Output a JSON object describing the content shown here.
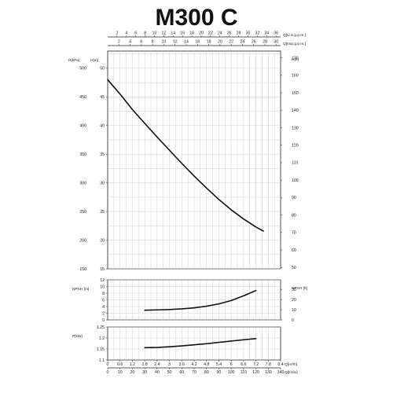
{
  "title": "M300 C",
  "chart_data": {
    "type": "line",
    "title": "M300 C",
    "top_axes": [
      {
        "label": "Q[U.S.g.p.m.]",
        "ticks": [
          "2",
          "4",
          "6",
          "8",
          "10",
          "12",
          "14",
          "16",
          "18",
          "20",
          "22",
          "24",
          "26",
          "28",
          "30",
          "32",
          "34",
          "36"
        ]
      },
      {
        "label": "Q[Imp.g.p.m.]",
        "ticks": [
          "2",
          "4",
          "6",
          "8",
          "10",
          "12",
          "14",
          "16",
          "18",
          "20",
          "22",
          "24",
          "26",
          "28",
          "30"
        ]
      }
    ],
    "bottom_axes": [
      {
        "label": "Q[m³/h]",
        "ticks": [
          "0",
          "0.6",
          "1.2",
          "1.8",
          "2.4",
          "3",
          "3.6",
          "4.2",
          "4.8",
          "5.4",
          "6",
          "6.6",
          "7.2",
          "7.8",
          "8.4"
        ]
      },
      {
        "label": "Q[l/min]",
        "ticks": [
          "0",
          "10",
          "20",
          "30",
          "40",
          "50",
          "60",
          "70",
          "80",
          "90",
          "100",
          "110",
          "120",
          "130",
          "140"
        ]
      }
    ],
    "xlim": [
      0,
      140
    ],
    "panels": [
      {
        "name": "head",
        "left_axes": [
          {
            "label": "H[kPa]",
            "ticks": [
              "150",
              "200",
              "250",
              "300",
              "350",
              "400",
              "450",
              "500"
            ]
          },
          {
            "label": "H[m]",
            "ticks": [
              "15",
              "20",
              "25",
              "30",
              "35",
              "40",
              "45",
              "50"
            ]
          }
        ],
        "right_axis": {
          "label": "H[ft]",
          "ticks": [
            "50",
            "60",
            "70",
            "80",
            "90",
            "100",
            "110",
            "120",
            "130",
            "140",
            "150",
            "160",
            "170"
          ]
        },
        "ylim": [
          15,
          53
        ],
        "series": [
          {
            "x": [
              0,
              10,
              20,
              30,
              40,
              50,
              60,
              70,
              80,
              90,
              100,
              110,
              120,
              126
            ],
            "y": [
              48,
              45.5,
              42.8,
              40.4,
              38,
              35.7,
              33.4,
              31.2,
              29.1,
              27.1,
              25.3,
              23.7,
              22.3,
              21.6
            ]
          }
        ]
      },
      {
        "name": "npsh",
        "left_axis": {
          "label": "NPSH [m]",
          "ticks": [
            "0",
            "2",
            "4",
            "6",
            "8",
            "10",
            "12"
          ]
        },
        "right_axis": {
          "label": "NPSH [ft]",
          "ticks": [
            "0",
            "10",
            "20",
            "30"
          ]
        },
        "ylim": [
          0,
          12
        ],
        "series": [
          {
            "x": [
              30,
              40,
              50,
              60,
              70,
              80,
              90,
              100,
              110,
              120
            ],
            "y": [
              2.9,
              3.0,
              3.1,
              3.3,
              3.6,
              4.1,
              4.8,
              5.8,
              7.2,
              8.8
            ]
          }
        ]
      },
      {
        "name": "power",
        "left_axis": {
          "label": "P[kW]",
          "ticks": [
            "1.1",
            "1.15",
            "1.2",
            "1.25"
          ]
        },
        "ylim": [
          1.1,
          1.25
        ],
        "series": [
          {
            "x": [
              30,
              40,
              50,
              60,
              70,
              80,
              90,
              100,
              110,
              120
            ],
            "y": [
              1.156,
              1.157,
              1.16,
              1.164,
              1.169,
              1.174,
              1.18,
              1.186,
              1.192,
              1.197
            ]
          }
        ]
      }
    ],
    "grid": true
  }
}
